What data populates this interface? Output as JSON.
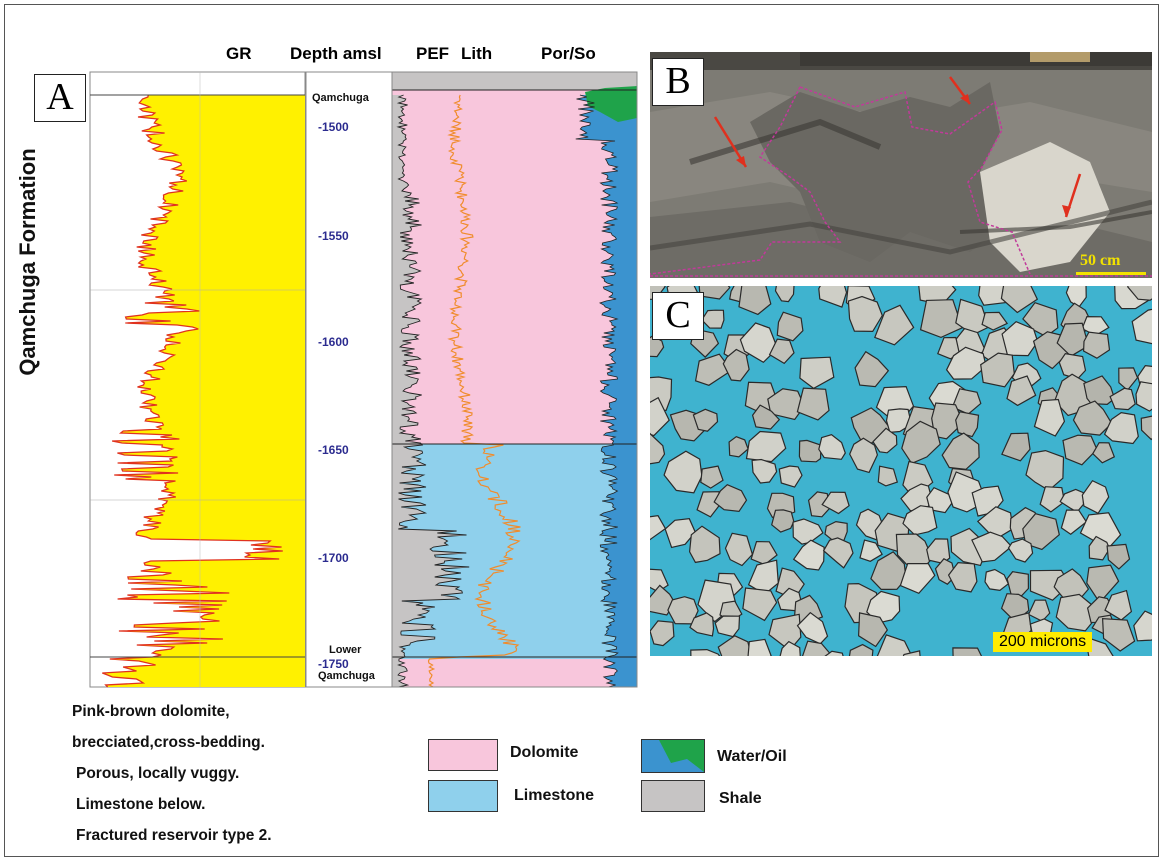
{
  "panels": {
    "a": "A",
    "b": "B",
    "c": "C"
  },
  "formation_label": "Qamchuga Formation",
  "log_headers": {
    "gr": "GR",
    "depth": "Depth amsl",
    "pef": "PEF",
    "lith": "Lith",
    "por_so": "Por/So"
  },
  "header_colors": {
    "gr": "#d03a28",
    "pef": "#f08c2c",
    "text": "#111111"
  },
  "formation_tops": {
    "top": "Qamchuga",
    "lower_1": "Lower",
    "lower_2": "Qamchuga"
  },
  "depth_ticks": [
    "-1500",
    "-1550",
    "-1600",
    "-1650",
    "-1700",
    "-1750"
  ],
  "description": [
    "Pink-brown dolomite,",
    "brecciated,cross-bedding.",
    "Porous, locally vuggy.",
    "Limestone below.",
    "Fractured reservoir type 2."
  ],
  "legend": {
    "dolomite": {
      "label": "Dolomite",
      "color": "#f8c6dc"
    },
    "limestone": {
      "label": "Limestone",
      "color": "#8fd0ec"
    },
    "water_oil": {
      "label": "Water/Oil",
      "water_color": "#3b93cf",
      "oil_color": "#1fa34a"
    },
    "shale": {
      "label": "Shale",
      "color": "#c6c4c4"
    }
  },
  "scale_bars": {
    "b": "50 cm",
    "c": "200 microns"
  }
}
